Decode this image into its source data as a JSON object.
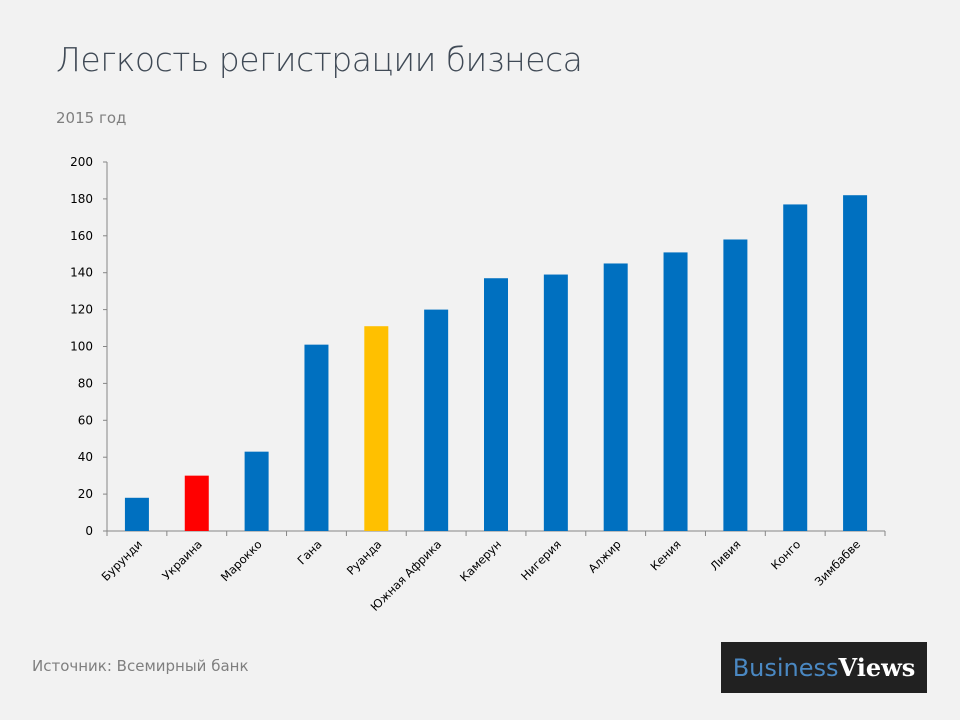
{
  "header": {
    "title": "Легкость регистрации бизнеса",
    "subtitle": "2015 год"
  },
  "footer": {
    "source": "Источник: Всемирный банк",
    "logo_part1": "Business",
    "logo_part2": "Views"
  },
  "colors": {
    "default_bar": "#0070c0",
    "highlight_ukraine": "#ff0000",
    "highlight_rwanda": "#ffc000",
    "axis": "#868686"
  },
  "chart_data": {
    "type": "bar",
    "title": "Легкость регистрации бизнеса",
    "subtitle": "2015 год",
    "xlabel": "",
    "ylabel": "",
    "ylim": [
      0,
      200
    ],
    "yticks": [
      0,
      20,
      40,
      60,
      80,
      100,
      120,
      140,
      160,
      180,
      200
    ],
    "grid": false,
    "legend": "none",
    "categories": [
      "Бурунди",
      "Украина",
      "Марокко",
      "Гана",
      "Руанда",
      "Южная Африка",
      "Камерун",
      "Нигерия",
      "Алжир",
      "Кения",
      "Ливия",
      "Конго",
      "Зимбабве"
    ],
    "values": [
      18,
      30,
      43,
      101,
      111,
      120,
      137,
      139,
      145,
      151,
      158,
      177,
      182
    ],
    "bar_colors": [
      "#0070c0",
      "#ff0000",
      "#0070c0",
      "#0070c0",
      "#ffc000",
      "#0070c0",
      "#0070c0",
      "#0070c0",
      "#0070c0",
      "#0070c0",
      "#0070c0",
      "#0070c0",
      "#0070c0"
    ]
  }
}
